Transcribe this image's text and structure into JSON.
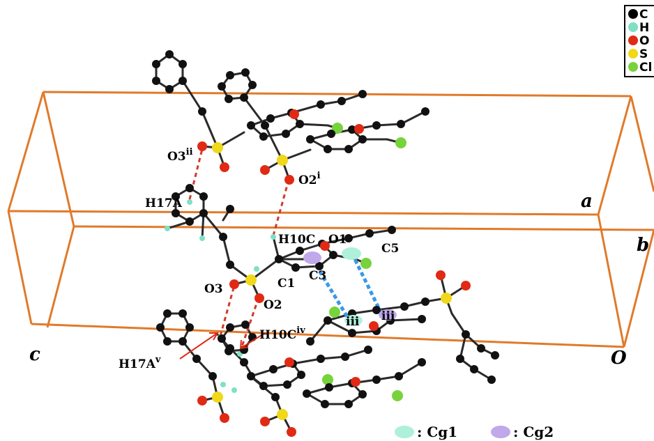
{
  "legend": [
    {
      "symbol": "C",
      "color": "#000000"
    },
    {
      "symbol": "H",
      "color": "#7fe0c4"
    },
    {
      "symbol": "O",
      "color": "#e02a14"
    },
    {
      "symbol": "S",
      "color": "#f0d81a"
    },
    {
      "symbol": "Cl",
      "color": "#77d33c"
    }
  ],
  "axes": {
    "a": "a",
    "b": "b",
    "c": "c",
    "origin": "O"
  },
  "atom_labels": {
    "O3ii": "O3",
    "O3ii_sup": "ii",
    "O2i": "O2",
    "O2i_sup": "i",
    "H17A": "H17A",
    "H10C": "H10C",
    "O1": "O1",
    "C5": "C5",
    "C3": "C3",
    "C1": "C1",
    "O3": "O3",
    "O2": "O2",
    "H10Civ": "H10C",
    "H10Civ_sup": "iv",
    "H17Av": "H17A",
    "H17Av_sup": "v",
    "iii_a": "iii",
    "iii_b": "iii"
  },
  "centroid_legend": [
    {
      "label": ": Cg1",
      "color": "#aef0dc"
    },
    {
      "label": ": Cg2",
      "color": "#c0a8ea"
    }
  ],
  "colors": {
    "cell": "#e07a2a",
    "hbond": "#d03a2a",
    "stacking": "#3a98e8",
    "bond": "#2a2a2a"
  }
}
